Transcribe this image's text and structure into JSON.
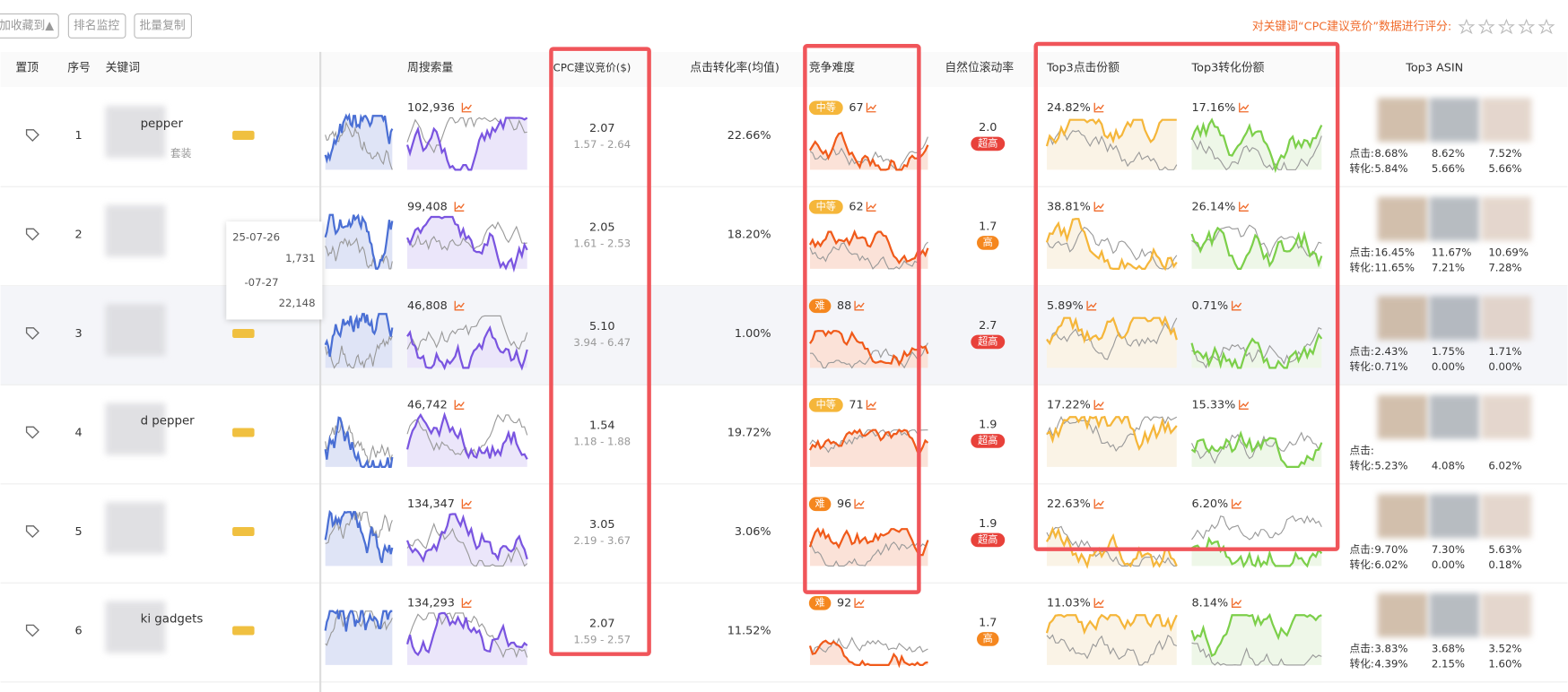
{
  "toolbar": {
    "buttons": [
      "加收藏到▲",
      "排名监控",
      "批量复制"
    ],
    "rating_prompt": "对关键词“CPC建议竞价”数据进行评分:"
  },
  "table": {
    "headers": {
      "pin": "置顶",
      "index": "序号",
      "keyword": "关键词",
      "search": "周搜索量",
      "cpc": "CPC建议竞价($)",
      "conversion": "点击转化率(均值)",
      "difficulty": "竞争难度",
      "roll": "自然位滚动率",
      "click_share": "Top3点击份额",
      "conv_share": "Top3转化份额",
      "asin": "Top3 ASIN"
    },
    "asin_click_label": "点击:",
    "asin_conv_label": "转化:",
    "rows": [
      {
        "index": "1",
        "keyword": "pepper",
        "keyword_sub": "套装",
        "search": "102,936",
        "cpc": "2.07",
        "cpc_range": "1.57 - 2.64",
        "conversion": "22.66%",
        "difficulty_level": "中等",
        "difficulty": "67",
        "roll": "2.0",
        "roll_level": "超高",
        "click_share": "24.82%",
        "conv_share": "17.16%",
        "asin_clicks": [
          "8.68%",
          "8.62%",
          "7.52%"
        ],
        "asin_convs": [
          "5.84%",
          "5.66%",
          "5.66%"
        ]
      },
      {
        "index": "2",
        "search": "99,408",
        "cpc": "2.05",
        "cpc_range": "1.61 - 2.53",
        "conversion": "18.20%",
        "difficulty_level": "中等",
        "difficulty": "62",
        "roll": "1.7",
        "roll_level": "高",
        "click_share": "38.81%",
        "conv_share": "26.14%",
        "asin_clicks": [
          "16.45%",
          "11.67%",
          "10.69%"
        ],
        "asin_convs": [
          "11.65%",
          "7.21%",
          "7.28%"
        ]
      },
      {
        "index": "3",
        "search": "46,808",
        "cpc": "5.10",
        "cpc_range": "3.94 - 6.47",
        "conversion": "1.00%",
        "difficulty_level": "难",
        "difficulty": "88",
        "roll": "2.7",
        "roll_level": "超高",
        "click_share": "5.89%",
        "conv_share": "0.71%",
        "asin_clicks": [
          "2.43%",
          "1.75%",
          "1.71%"
        ],
        "asin_convs": [
          "0.71%",
          "0.00%",
          "0.00%"
        ]
      },
      {
        "index": "4",
        "keyword": "d pepper",
        "search": "46,742",
        "cpc": "1.54",
        "cpc_range": "1.18 - 1.88",
        "conversion": "19.72%",
        "difficulty_level": "中等",
        "difficulty": "71",
        "roll": "1.9",
        "roll_level": "超高",
        "click_share": "17.22%",
        "conv_share": "15.33%",
        "asin_convs": [
          "5.23%",
          "4.08%",
          "6.02%"
        ]
      },
      {
        "index": "5",
        "search": "134,347",
        "cpc": "3.05",
        "cpc_range": "2.19 - 3.67",
        "conversion": "3.06%",
        "difficulty_level": "难",
        "difficulty": "96",
        "roll": "1.9",
        "roll_level": "超高",
        "click_share": "22.63%",
        "conv_share": "6.20%",
        "asin_clicks": [
          "9.70%",
          "7.30%",
          "5.63%"
        ],
        "asin_convs": [
          "6.02%",
          "0.00%",
          "0.18%"
        ]
      },
      {
        "index": "6",
        "keyword": "ki    gadgets",
        "search": "134,293",
        "cpc": "2.07",
        "cpc_range": "1.59 - 2.57",
        "conversion": "11.52%",
        "difficulty_level": "难",
        "difficulty": "92",
        "roll": "1.7",
        "roll_level": "高",
        "click_share": "11.03%",
        "conv_share": "8.14%",
        "asin_clicks": [
          "3.83%",
          "3.68%",
          "3.52%"
        ],
        "asin_convs": [
          "4.39%",
          "2.15%",
          "1.60%"
        ]
      }
    ]
  },
  "tooltip": {
    "date1": "25-07-26",
    "value1": "1,731",
    "date2": "-07-27",
    "value2": "22,148"
  }
}
